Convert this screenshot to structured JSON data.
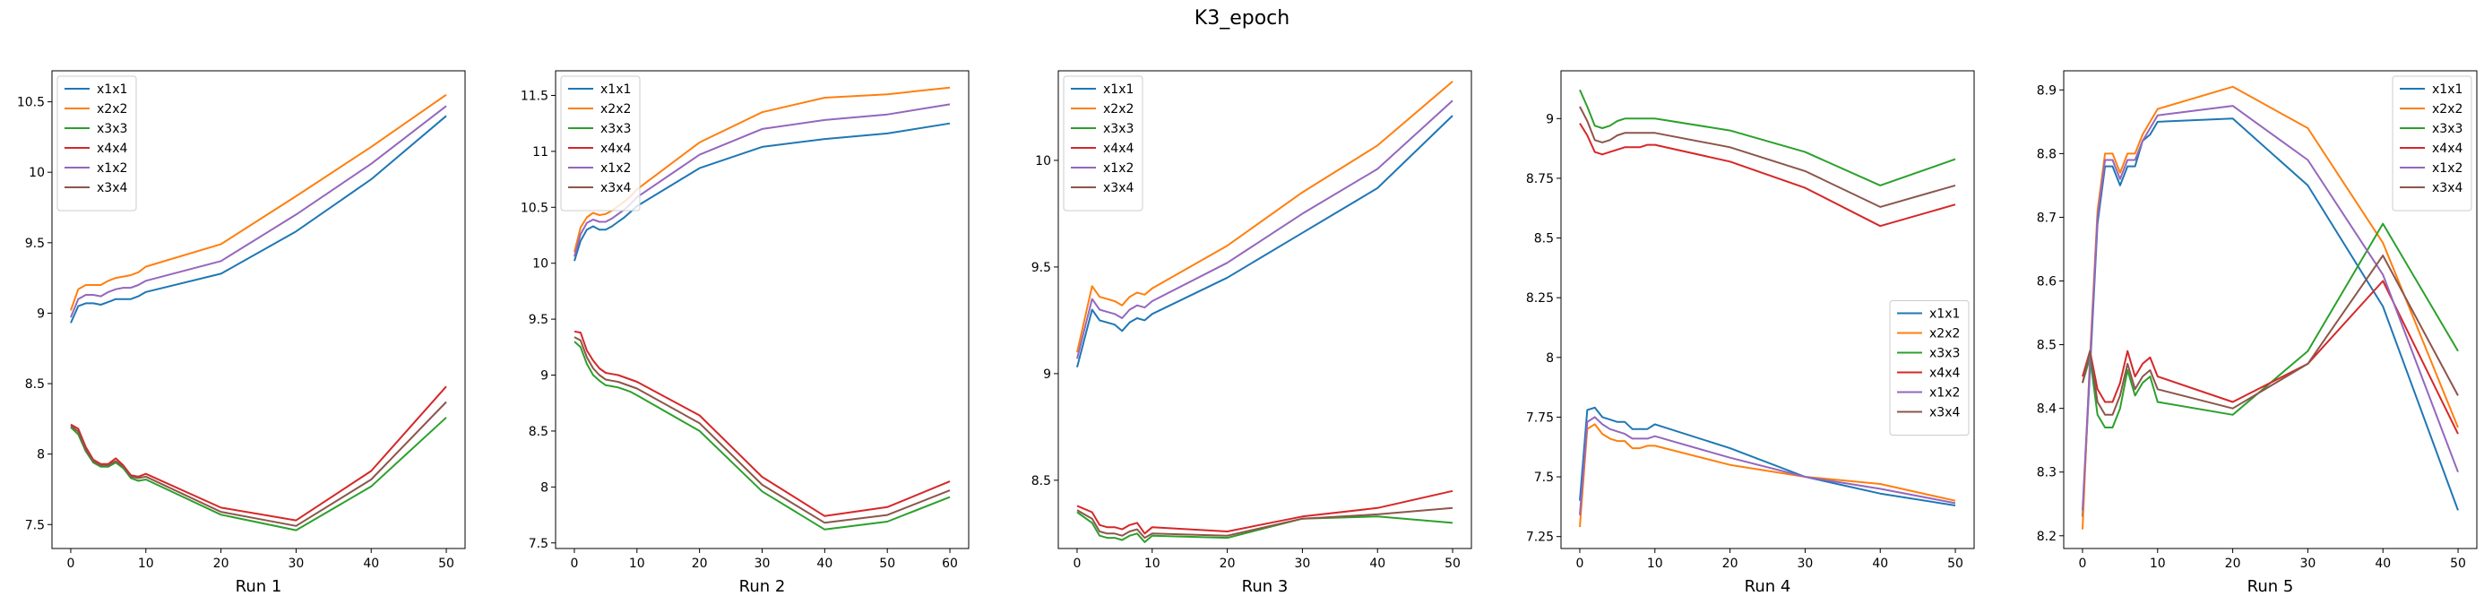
{
  "figure": {
    "title": "K3_epoch"
  },
  "colors": {
    "x1x1": "#1f77b4",
    "x2x2": "#ff7f0e",
    "x3x3": "#2ca02c",
    "x4x4": "#d62728",
    "x1x2": "#9467bd",
    "x3x4": "#8c564b"
  },
  "chart_data": [
    {
      "type": "line",
      "title": "",
      "xlabel": "Run 1",
      "ylabel": "",
      "xlim": [
        -2.5,
        52.5
      ],
      "ylim": [
        7.33,
        10.72
      ],
      "xticks": [
        0,
        10,
        20,
        30,
        40,
        50
      ],
      "yticks": [
        7.5,
        8.0,
        8.5,
        9.0,
        9.5,
        10.0,
        10.5
      ],
      "legend": "top-left",
      "x": [
        0,
        1,
        2,
        3,
        4,
        5,
        6,
        7,
        8,
        9,
        10,
        20,
        30,
        40,
        50
      ],
      "series": [
        {
          "name": "x1x1",
          "values": [
            8.93,
            9.05,
            9.07,
            9.07,
            9.06,
            9.08,
            9.1,
            9.1,
            9.1,
            9.12,
            9.15,
            9.28,
            9.58,
            9.95,
            10.4
          ]
        },
        {
          "name": "x2x2",
          "values": [
            9.02,
            9.17,
            9.2,
            9.2,
            9.2,
            9.23,
            9.25,
            9.26,
            9.27,
            9.29,
            9.33,
            9.49,
            9.83,
            10.18,
            10.55
          ]
        },
        {
          "name": "x3x3",
          "values": [
            8.19,
            8.14,
            8.02,
            7.94,
            7.91,
            7.91,
            7.94,
            7.9,
            7.83,
            7.81,
            7.82,
            7.57,
            7.46,
            7.77,
            8.26
          ]
        },
        {
          "name": "x4x4",
          "values": [
            8.21,
            8.18,
            8.05,
            7.96,
            7.93,
            7.93,
            7.97,
            7.92,
            7.85,
            7.84,
            7.86,
            7.62,
            7.53,
            7.88,
            8.48
          ]
        },
        {
          "name": "x1x2",
          "values": [
            8.97,
            9.1,
            9.13,
            9.13,
            9.12,
            9.15,
            9.17,
            9.18,
            9.18,
            9.2,
            9.23,
            9.37,
            9.7,
            10.06,
            10.47
          ]
        },
        {
          "name": "x3x4",
          "values": [
            8.2,
            8.16,
            8.03,
            7.95,
            7.92,
            7.92,
            7.95,
            7.91,
            7.84,
            7.83,
            7.84,
            7.59,
            7.49,
            7.82,
            8.37
          ]
        }
      ]
    },
    {
      "type": "line",
      "title": "",
      "xlabel": "Run 2",
      "ylabel": "",
      "xlim": [
        -3,
        63
      ],
      "ylim": [
        7.45,
        11.72
      ],
      "xticks": [
        0,
        10,
        20,
        30,
        40,
        50,
        60
      ],
      "yticks": [
        7.5,
        8.0,
        8.5,
        9.0,
        9.5,
        10.0,
        10.5,
        11.0,
        11.5
      ],
      "legend": "top-left",
      "x": [
        0,
        1,
        2,
        3,
        4,
        5,
        6,
        7,
        8,
        9,
        10,
        20,
        30,
        40,
        50,
        60
      ],
      "series": [
        {
          "name": "x1x1",
          "values": [
            10.02,
            10.2,
            10.3,
            10.33,
            10.3,
            10.3,
            10.33,
            10.37,
            10.41,
            10.46,
            10.51,
            10.85,
            11.04,
            11.11,
            11.16,
            11.25
          ]
        },
        {
          "name": "x2x2",
          "values": [
            10.1,
            10.32,
            10.41,
            10.45,
            10.43,
            10.44,
            10.47,
            10.51,
            10.55,
            10.6,
            10.66,
            11.08,
            11.35,
            11.48,
            11.51,
            11.57
          ]
        },
        {
          "name": "x3x3",
          "values": [
            9.3,
            9.25,
            9.1,
            9.0,
            8.95,
            8.91,
            8.9,
            8.89,
            8.87,
            8.85,
            8.82,
            8.5,
            7.96,
            7.62,
            7.69,
            7.91
          ]
        },
        {
          "name": "x4x4",
          "values": [
            9.39,
            9.38,
            9.22,
            9.13,
            9.06,
            9.02,
            9.01,
            9.0,
            8.98,
            8.96,
            8.94,
            8.64,
            8.09,
            7.74,
            7.82,
            8.05
          ]
        },
        {
          "name": "x1x2",
          "values": [
            10.06,
            10.26,
            10.36,
            10.39,
            10.37,
            10.37,
            10.4,
            10.44,
            10.48,
            10.53,
            10.59,
            10.97,
            11.2,
            11.28,
            11.33,
            11.42
          ]
        },
        {
          "name": "x3x4",
          "values": [
            9.34,
            9.31,
            9.16,
            9.06,
            9.0,
            8.96,
            8.95,
            8.94,
            8.92,
            8.9,
            8.88,
            8.57,
            8.02,
            7.68,
            7.75,
            7.97
          ]
        }
      ]
    },
    {
      "type": "line",
      "title": "",
      "xlabel": "Run 3",
      "ylabel": "",
      "xlim": [
        -2.5,
        52.5
      ],
      "ylim": [
        8.18,
        10.42
      ],
      "xticks": [
        0,
        10,
        20,
        30,
        40,
        50
      ],
      "yticks": [
        8.5,
        9.0,
        9.5,
        10.0
      ],
      "legend": "top-left",
      "x": [
        0,
        2,
        3,
        4,
        5,
        6,
        7,
        8,
        9,
        10,
        20,
        30,
        40,
        50
      ],
      "series": [
        {
          "name": "x1x1",
          "values": [
            9.03,
            9.3,
            9.25,
            9.24,
            9.23,
            9.2,
            9.24,
            9.26,
            9.25,
            9.28,
            9.45,
            9.66,
            9.87,
            10.21
          ]
        },
        {
          "name": "x2x2",
          "values": [
            9.1,
            9.41,
            9.36,
            9.35,
            9.34,
            9.32,
            9.36,
            9.38,
            9.37,
            9.4,
            9.6,
            9.85,
            10.07,
            10.37
          ]
        },
        {
          "name": "x3x3",
          "values": [
            8.35,
            8.3,
            8.24,
            8.23,
            8.23,
            8.22,
            8.24,
            8.25,
            8.21,
            8.24,
            8.23,
            8.32,
            8.33,
            8.3
          ]
        },
        {
          "name": "x4x4",
          "values": [
            8.38,
            8.35,
            8.29,
            8.28,
            8.28,
            8.27,
            8.29,
            8.3,
            8.25,
            8.28,
            8.26,
            8.33,
            8.37,
            8.45
          ]
        },
        {
          "name": "x1x2",
          "values": [
            9.07,
            9.35,
            9.3,
            9.29,
            9.28,
            9.26,
            9.3,
            9.32,
            9.31,
            9.34,
            9.52,
            9.75,
            9.96,
            10.28
          ]
        },
        {
          "name": "x3x4",
          "values": [
            8.36,
            8.32,
            8.26,
            8.25,
            8.25,
            8.24,
            8.26,
            8.27,
            8.23,
            8.25,
            8.24,
            8.32,
            8.34,
            8.37
          ]
        }
      ]
    },
    {
      "type": "line",
      "title": "",
      "xlabel": "Run 4",
      "ylabel": "",
      "xlim": [
        -2.5,
        52.5
      ],
      "ylim": [
        7.2,
        9.2
      ],
      "xticks": [
        0,
        10,
        20,
        30,
        40,
        50
      ],
      "yticks": [
        7.25,
        7.5,
        7.75,
        8.0,
        8.25,
        8.5,
        8.75,
        9.0
      ],
      "legend": "center-right",
      "x": [
        0,
        1,
        2,
        3,
        4,
        5,
        6,
        7,
        8,
        9,
        10,
        20,
        30,
        40,
        50
      ],
      "series": [
        {
          "name": "x1x1",
          "values": [
            7.4,
            7.78,
            7.79,
            7.75,
            7.74,
            7.73,
            7.73,
            7.7,
            7.7,
            7.7,
            7.72,
            7.62,
            7.5,
            7.43,
            7.38
          ]
        },
        {
          "name": "x2x2",
          "values": [
            7.29,
            7.7,
            7.72,
            7.68,
            7.66,
            7.65,
            7.65,
            7.62,
            7.62,
            7.63,
            7.63,
            7.55,
            7.5,
            7.47,
            7.4
          ]
        },
        {
          "name": "x3x3",
          "values": [
            9.12,
            9.05,
            8.97,
            8.96,
            8.97,
            8.99,
            9.0,
            9.0,
            9.0,
            9.0,
            9.0,
            8.95,
            8.86,
            8.72,
            8.83
          ]
        },
        {
          "name": "x4x4",
          "values": [
            8.98,
            8.93,
            8.86,
            8.85,
            8.86,
            8.87,
            8.88,
            8.88,
            8.88,
            8.89,
            8.89,
            8.82,
            8.71,
            8.55,
            8.64
          ]
        },
        {
          "name": "x1x2",
          "values": [
            7.34,
            7.73,
            7.75,
            7.72,
            7.7,
            7.69,
            7.68,
            7.66,
            7.66,
            7.66,
            7.67,
            7.58,
            7.5,
            7.45,
            7.39
          ]
        },
        {
          "name": "x3x4",
          "values": [
            9.05,
            8.99,
            8.91,
            8.9,
            8.91,
            8.93,
            8.94,
            8.94,
            8.94,
            8.94,
            8.94,
            8.88,
            8.78,
            8.63,
            8.72
          ]
        }
      ]
    },
    {
      "type": "line",
      "title": "",
      "xlabel": "Run 5",
      "ylabel": "",
      "xlim": [
        -2.5,
        52.5
      ],
      "ylim": [
        8.18,
        8.93
      ],
      "xticks": [
        0,
        10,
        20,
        30,
        40,
        50
      ],
      "yticks": [
        8.2,
        8.3,
        8.4,
        8.5,
        8.6,
        8.7,
        8.8,
        8.9
      ],
      "legend": "top-right",
      "x": [
        0,
        1,
        2,
        3,
        4,
        5,
        6,
        7,
        8,
        9,
        10,
        20,
        30,
        40,
        50
      ],
      "series": [
        {
          "name": "x1x1",
          "values": [
            8.23,
            8.46,
            8.69,
            8.78,
            8.78,
            8.75,
            8.78,
            8.78,
            8.82,
            8.83,
            8.85,
            8.855,
            8.75,
            8.56,
            8.24
          ]
        },
        {
          "name": "x2x2",
          "values": [
            8.21,
            8.48,
            8.71,
            8.8,
            8.8,
            8.77,
            8.8,
            8.8,
            8.83,
            8.85,
            8.87,
            8.905,
            8.84,
            8.66,
            8.37
          ]
        },
        {
          "name": "x3x3",
          "values": [
            8.44,
            8.48,
            8.39,
            8.37,
            8.37,
            8.4,
            8.46,
            8.42,
            8.44,
            8.45,
            8.41,
            8.39,
            8.49,
            8.69,
            8.49
          ]
        },
        {
          "name": "x4x4",
          "values": [
            8.45,
            8.49,
            8.43,
            8.41,
            8.41,
            8.44,
            8.49,
            8.45,
            8.47,
            8.48,
            8.45,
            8.41,
            8.47,
            8.6,
            8.36
          ]
        },
        {
          "name": "x1x2",
          "values": [
            8.24,
            8.47,
            8.7,
            8.79,
            8.79,
            8.76,
            8.79,
            8.79,
            8.82,
            8.84,
            8.86,
            8.875,
            8.79,
            8.61,
            8.3
          ]
        },
        {
          "name": "x3x4",
          "values": [
            8.44,
            8.49,
            8.41,
            8.39,
            8.39,
            8.42,
            8.47,
            8.43,
            8.45,
            8.46,
            8.43,
            8.4,
            8.47,
            8.64,
            8.42
          ]
        }
      ]
    }
  ]
}
